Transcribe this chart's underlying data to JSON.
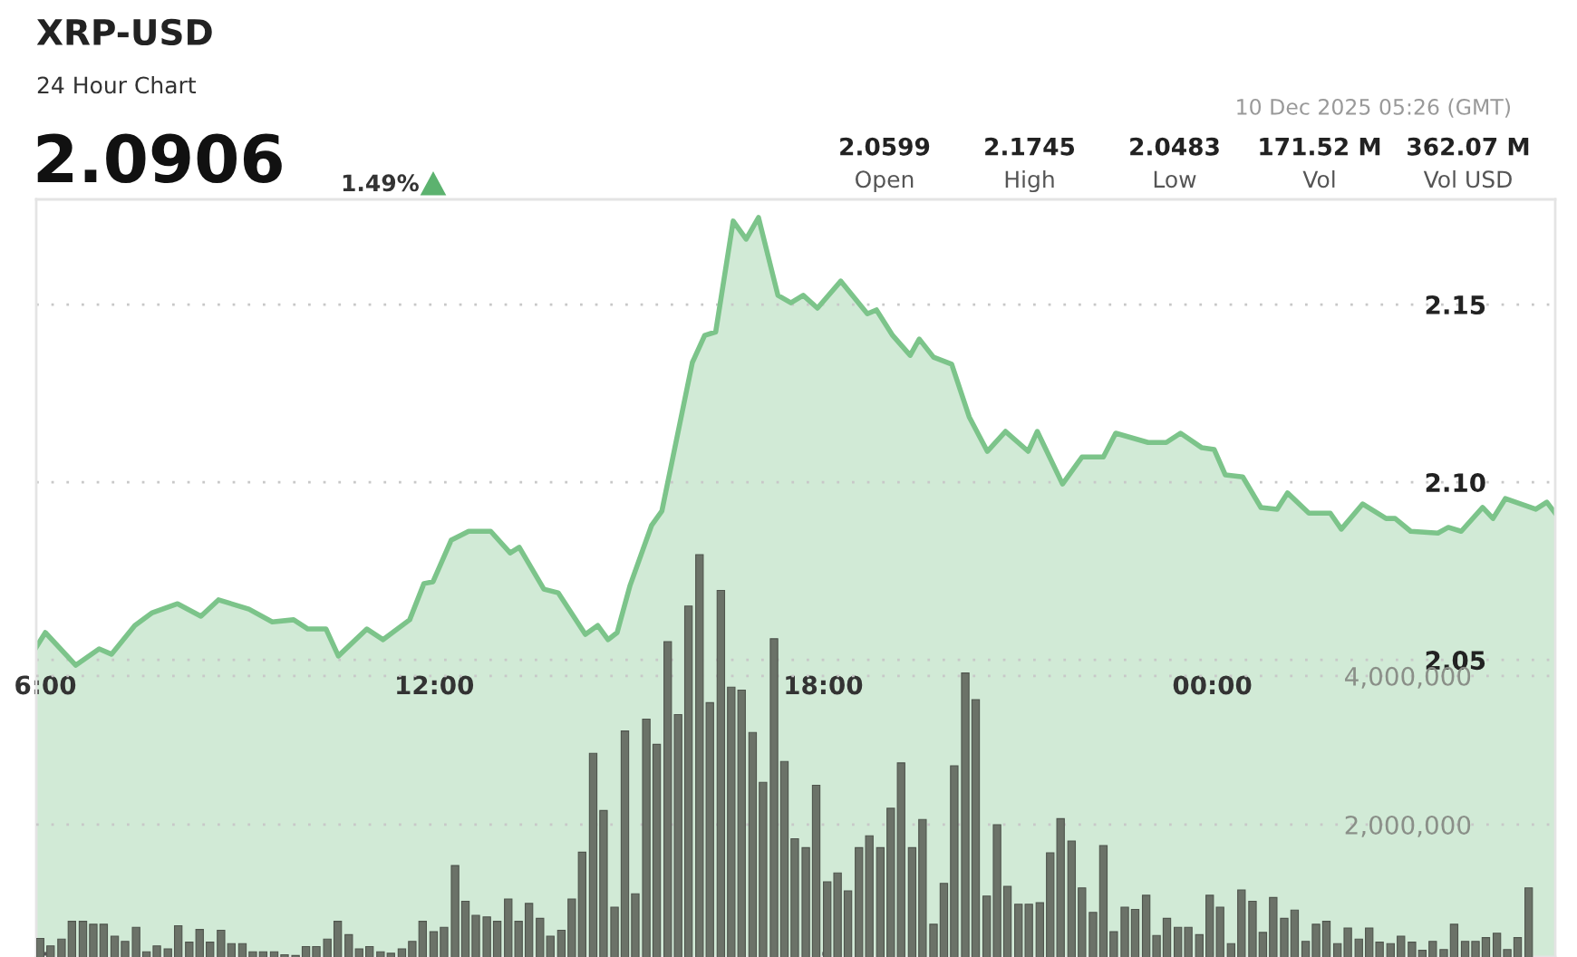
{
  "chart_data": {
    "type": "area",
    "title": "XRP-USD",
    "subtitle": "24 Hour Chart",
    "annotations": [
      "2.0906",
      "1.49%",
      "2.0599",
      "Open",
      "2.1745",
      "High",
      "2.0483",
      "Low",
      "171.52 M",
      "Vol",
      "362.07 M",
      "Vol USD",
      "10 Dec 2025 05:26 (GMT)"
    ],
    "xlim": [
      5.86,
      29.29
    ],
    "xticks": [
      {
        "value": 6,
        "label": "6:00"
      },
      {
        "value": 12,
        "label": "12:00"
      },
      {
        "value": 18,
        "label": "18:00"
      },
      {
        "value": 24,
        "label": "00:00"
      }
    ],
    "ylim": [
      1.9664,
      2.1796
    ],
    "yticks": [
      2.05,
      {
        "value": 2.1,
        "label": "2.10"
      },
      2.15
    ],
    "y2lim": [
      220000,
      10410000
    ],
    "y2ticks": [
      {
        "value": 2000000,
        "label": "2,000,000"
      },
      {
        "value": 4000000,
        "label": "4,000,000"
      }
    ],
    "grid": "y",
    "marker": "none",
    "line_style": "solid",
    "series": [
      {
        "color": "#7cc48a",
        "x": [
          5.86,
          6.0,
          6.47,
          6.83,
          7.02,
          7.38,
          7.65,
          8.04,
          8.4,
          8.67,
          9.14,
          9.5,
          9.83,
          10.05,
          10.33,
          10.52,
          10.96,
          11.21,
          11.62,
          11.84,
          11.98,
          12.26,
          12.53,
          12.87,
          13.17,
          13.31,
          13.69,
          13.91,
          14.33,
          14.52,
          14.68,
          14.82,
          15.02,
          15.35,
          15.51,
          15.98,
          16.17,
          16.34,
          16.61,
          16.81,
          17.0,
          17.3,
          17.5,
          17.69,
          17.91,
          18.27,
          18.68,
          18.82,
          19.07,
          19.34,
          19.48,
          19.7,
          19.98,
          20.25,
          20.53,
          20.81,
          21.16,
          21.3,
          21.69,
          21.99,
          22.32,
          22.51,
          23.01,
          23.29,
          23.51,
          23.84,
          24.03,
          24.2,
          24.47,
          24.75,
          25.0,
          25.16,
          25.49,
          25.82,
          25.99,
          26.32,
          26.68,
          26.82,
          27.06,
          27.48,
          27.64,
          27.84,
          28.17,
          28.33,
          28.52,
          28.99,
          29.16,
          29.29
        ],
        "values": [
          2.0536,
          2.0577,
          2.0485,
          2.0531,
          2.0516,
          2.0597,
          2.0633,
          2.0658,
          2.0623,
          2.0669,
          2.0643,
          2.0607,
          2.0613,
          2.0587,
          2.0587,
          2.0511,
          2.0587,
          2.0557,
          2.0613,
          2.0715,
          2.072,
          2.0837,
          2.0862,
          2.0862,
          2.0801,
          2.0817,
          2.0699,
          2.0689,
          2.0572,
          2.0597,
          2.0557,
          2.0577,
          2.071,
          2.0878,
          2.0919,
          2.1337,
          2.1413,
          2.1423,
          2.1735,
          2.1684,
          2.1745,
          2.1526,
          2.1505,
          2.1526,
          2.149,
          2.1566,
          2.1474,
          2.1485,
          2.1413,
          2.1357,
          2.1403,
          2.1352,
          2.1332,
          2.1184,
          2.1087,
          2.1143,
          2.1087,
          2.1143,
          2.0995,
          2.1071,
          2.1071,
          2.1138,
          2.1112,
          2.1112,
          2.1138,
          2.1097,
          2.1092,
          2.1021,
          2.1015,
          2.0929,
          2.0924,
          2.097,
          2.0913,
          2.0913,
          2.0868,
          2.0939,
          2.0898,
          2.0898,
          2.0862,
          2.0857,
          2.0873,
          2.0862,
          2.0929,
          2.0898,
          2.0954,
          2.0924,
          2.0944,
          2.0913
        ]
      },
      {
        "type": "bar",
        "axis": "y2",
        "color": "#6b7268",
        "x": [
          5.92,
          6.08,
          6.25,
          6.41,
          6.58,
          6.74,
          6.9,
          7.07,
          7.23,
          7.4,
          7.56,
          7.72,
          7.89,
          8.05,
          8.22,
          8.38,
          8.54,
          8.71,
          8.87,
          9.04,
          9.2,
          9.36,
          9.53,
          9.69,
          9.86,
          10.02,
          10.18,
          10.35,
          10.51,
          10.68,
          10.84,
          11.0,
          11.17,
          11.33,
          11.5,
          11.66,
          11.82,
          11.99,
          12.15,
          12.32,
          12.48,
          12.64,
          12.81,
          12.97,
          13.14,
          13.3,
          13.46,
          13.63,
          13.79,
          13.96,
          14.12,
          14.28,
          14.45,
          14.61,
          14.78,
          14.94,
          15.1,
          15.27,
          15.43,
          15.6,
          15.76,
          15.92,
          16.09,
          16.25,
          16.42,
          16.58,
          16.74,
          16.91,
          17.07,
          17.24,
          17.4,
          17.56,
          17.73,
          17.89,
          18.06,
          18.22,
          18.38,
          18.55,
          18.71,
          18.88,
          19.04,
          19.2,
          19.37,
          19.53,
          19.7,
          19.86,
          20.02,
          20.19,
          20.35,
          20.52,
          20.68,
          20.84,
          21.01,
          21.17,
          21.34,
          21.5,
          21.66,
          21.83,
          21.99,
          22.16,
          22.32,
          22.48,
          22.65,
          22.81,
          22.98,
          23.14,
          23.3,
          23.47,
          23.63,
          23.8,
          23.96,
          24.12,
          24.29,
          24.45,
          24.62,
          24.78,
          24.94,
          25.11,
          25.27,
          25.44,
          25.6,
          25.76,
          25.93,
          26.09,
          26.26,
          26.42,
          26.58,
          26.75,
          26.91,
          27.08,
          27.24,
          27.4,
          27.57,
          27.73,
          27.9,
          28.06,
          28.22,
          28.39,
          28.55,
          28.71,
          28.88
        ],
        "values": [
          470000,
          370000,
          460000,
          700000,
          700000,
          660000,
          660000,
          500000,
          430000,
          620000,
          290000,
          370000,
          330000,
          640000,
          420000,
          590000,
          420000,
          580000,
          400000,
          400000,
          290000,
          290000,
          290000,
          250000,
          240000,
          360000,
          360000,
          460000,
          700000,
          520000,
          330000,
          360000,
          290000,
          270000,
          330000,
          430000,
          700000,
          560000,
          620000,
          1450000,
          970000,
          780000,
          760000,
          700000,
          1000000,
          700000,
          940000,
          740000,
          500000,
          580000,
          1000000,
          1630000,
          2960000,
          2190000,
          890000,
          3260000,
          1070000,
          3420000,
          3080000,
          4460000,
          3480000,
          4940000,
          5630000,
          3640000,
          5150000,
          3850000,
          3810000,
          3240000,
          2570000,
          4500000,
          2850000,
          1810000,
          1690000,
          2530000,
          1230000,
          1350000,
          1110000,
          1690000,
          1850000,
          1690000,
          2220000,
          2830000,
          1690000,
          2070000,
          660000,
          1210000,
          2790000,
          4040000,
          3680000,
          1040000,
          2000000,
          1170000,
          930000,
          930000,
          950000,
          1620000,
          2080000,
          1780000,
          1150000,
          820000,
          1720000,
          560000,
          890000,
          860000,
          1050000,
          510000,
          740000,
          620000,
          620000,
          520000,
          1050000,
          890000,
          400000,
          1120000,
          970000,
          550000,
          1020000,
          740000,
          850000,
          430000,
          660000,
          700000,
          400000,
          610000,
          460000,
          610000,
          420000,
          400000,
          500000,
          420000,
          310000,
          430000,
          320000,
          660000,
          430000,
          430000,
          480000,
          540000,
          320000,
          480000,
          1150000
        ]
      }
    ]
  }
}
